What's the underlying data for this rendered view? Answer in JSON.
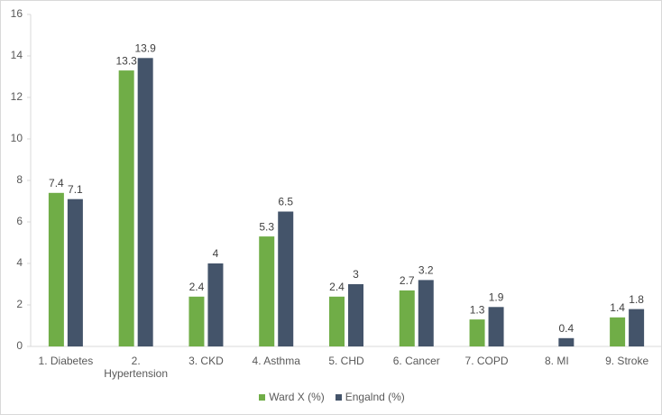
{
  "chart_data": {
    "type": "bar",
    "categories": [
      "1. Diabetes",
      "2. Hypertension",
      "3. CKD",
      "4. Asthma",
      "5. CHD",
      "6. Cancer",
      "7. COPD",
      "8. MI",
      "9. Stroke"
    ],
    "series": [
      {
        "name": "Ward X (%)",
        "color": "#70ad47",
        "values": [
          7.4,
          13.3,
          2.4,
          5.3,
          2.4,
          2.7,
          1.3,
          null,
          1.4
        ]
      },
      {
        "name": "Engalnd (%)",
        "color": "#44546a",
        "values": [
          7.1,
          13.9,
          4,
          6.5,
          3,
          3.2,
          1.9,
          0.4,
          1.8
        ]
      }
    ],
    "ylim": [
      0,
      16
    ],
    "yticks": [
      0,
      2,
      4,
      6,
      8,
      10,
      12,
      14,
      16
    ],
    "grid": false
  }
}
